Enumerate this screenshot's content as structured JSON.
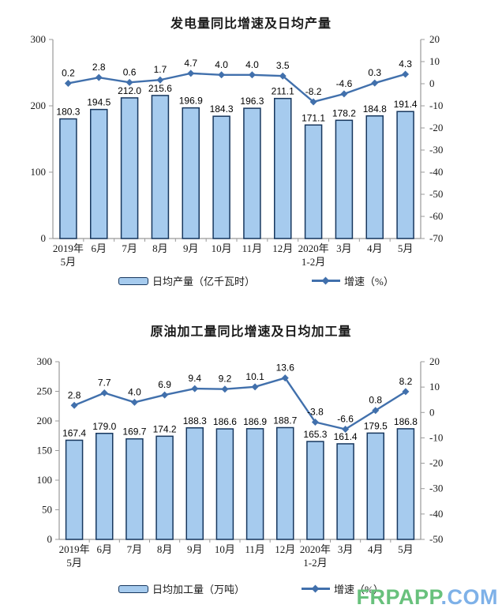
{
  "colors": {
    "bar_fill": "#a6cbee",
    "bar_border": "#17375e",
    "line": "#4170ac",
    "axis": "#999999",
    "watermark_green": "#68c17c",
    "watermark_blue": "#7eb1e8"
  },
  "watermark": {
    "left": "FRPAPP",
    "right": ".COM"
  },
  "chart_data": [
    {
      "type": "bar",
      "title": "发电量同比增速及日均产量",
      "categories": [
        "2019年\n5月",
        "6月",
        "7月",
        "8月",
        "9月",
        "10月",
        "11月",
        "12月",
        "2020年\n1-2月",
        "3月",
        "4月",
        "5月"
      ],
      "series": [
        {
          "name": "日均产量（亿千瓦时）",
          "type": "bar",
          "axis": "left",
          "values": [
            180.3,
            194.5,
            212.0,
            215.6,
            196.9,
            184.3,
            196.3,
            211.1,
            171.1,
            178.2,
            184.8,
            191.4
          ]
        },
        {
          "name": "增速（%）",
          "type": "line",
          "axis": "right",
          "values": [
            0.2,
            2.8,
            0.6,
            1.7,
            4.7,
            4.0,
            4.0,
            3.5,
            -8.2,
            -4.6,
            0.3,
            4.3
          ]
        }
      ],
      "left_axis": {
        "min": 0,
        "max": 300,
        "step": 100
      },
      "right_axis": {
        "min": -70,
        "max": 20,
        "step": 10
      },
      "grid": false,
      "legend_position": "bottom"
    },
    {
      "type": "bar",
      "title": "原油加工量同比增速及日均加工量",
      "categories": [
        "2019年\n5月",
        "6月",
        "7月",
        "8月",
        "9月",
        "10月",
        "11月",
        "12月",
        "2020年\n1-2月",
        "3月",
        "4月",
        "5月"
      ],
      "series": [
        {
          "name": "日均加工量（万吨）",
          "type": "bar",
          "axis": "left",
          "values": [
            167.4,
            179.0,
            169.7,
            174.2,
            188.3,
            186.6,
            186.9,
            188.7,
            165.3,
            161.4,
            179.5,
            186.8
          ]
        },
        {
          "name": "增速（%）",
          "type": "line",
          "axis": "right",
          "values": [
            2.8,
            7.7,
            4.0,
            6.9,
            9.4,
            9.2,
            10.1,
            13.6,
            -3.8,
            -6.6,
            0.8,
            8.2
          ]
        }
      ],
      "left_axis": {
        "min": 0,
        "max": 300,
        "step": 50
      },
      "right_axis": {
        "min": -50,
        "max": 20,
        "step": 10
      },
      "grid": false,
      "legend_position": "bottom"
    }
  ]
}
